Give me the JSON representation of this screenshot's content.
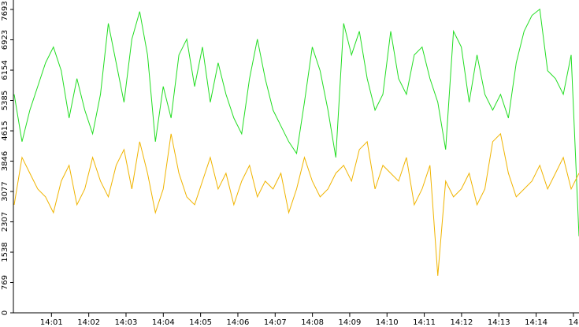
{
  "chart_data": {
    "type": "line",
    "xlim": [
      0,
      15.15
    ],
    "xticks": [
      {
        "value": 1,
        "label": "14:01"
      },
      {
        "value": 2,
        "label": "14:02"
      },
      {
        "value": 3,
        "label": "14:03"
      },
      {
        "value": 4,
        "label": "14:04"
      },
      {
        "value": 5,
        "label": "14:05"
      },
      {
        "value": 6,
        "label": "14:06"
      },
      {
        "value": 7,
        "label": "14:07"
      },
      {
        "value": 8,
        "label": "14:08"
      },
      {
        "value": 9,
        "label": "14:09"
      },
      {
        "value": 10,
        "label": "14:10"
      },
      {
        "value": 11,
        "label": "14:11"
      },
      {
        "value": 12,
        "label": "14:12"
      },
      {
        "value": 13,
        "label": "14:13"
      },
      {
        "value": 14,
        "label": "14:14"
      },
      {
        "value": 15,
        "label": "14"
      }
    ],
    "ylim": [
      0,
      7933
    ],
    "yticks": [
      0,
      769,
      1538,
      2307,
      3077,
      3846,
      4615,
      5385,
      6154,
      6923,
      7693
    ],
    "series": [
      {
        "color": "#22dd22",
        "values": [
          5540,
          4340,
          5140,
          5740,
          6340,
          6740,
          6140,
          4940,
          5940,
          5140,
          4540,
          5540,
          7340,
          6340,
          5340,
          6940,
          7640,
          6540,
          4340,
          5740,
          4940,
          6540,
          6940,
          5740,
          6740,
          5340,
          6340,
          5540,
          4940,
          4540,
          5940,
          6940,
          5940,
          5140,
          4740,
          4340,
          4040,
          5340,
          6740,
          6140,
          5140,
          3940,
          7340,
          6540,
          7140,
          5940,
          5140,
          5540,
          7140,
          5940,
          5540,
          6540,
          6740,
          5940,
          5340,
          4140,
          7140,
          6740,
          5340,
          6540,
          5540,
          5140,
          5540,
          4940,
          6340,
          7140,
          7540,
          7700,
          6140,
          5940,
          5540,
          6540,
          1940
        ]
      },
      {
        "color": "#f0b400",
        "values": [
          2740,
          3940,
          3540,
          3140,
          2940,
          2540,
          3340,
          3740,
          2740,
          3140,
          3940,
          3340,
          2940,
          3740,
          4140,
          3140,
          4340,
          3540,
          2540,
          3140,
          4540,
          3540,
          2940,
          2740,
          3340,
          3940,
          3140,
          3540,
          2740,
          3340,
          3740,
          2940,
          3340,
          3140,
          3540,
          2540,
          3140,
          3940,
          3340,
          2940,
          3140,
          3540,
          3740,
          3340,
          4140,
          4340,
          3140,
          3740,
          3540,
          3340,
          3940,
          2740,
          3140,
          3740,
          940,
          3340,
          2940,
          3140,
          3540,
          2740,
          3140,
          4340,
          4540,
          3540,
          2940,
          3140,
          3340,
          3740,
          3140,
          3540,
          3940,
          3140,
          3540
        ]
      }
    ]
  }
}
